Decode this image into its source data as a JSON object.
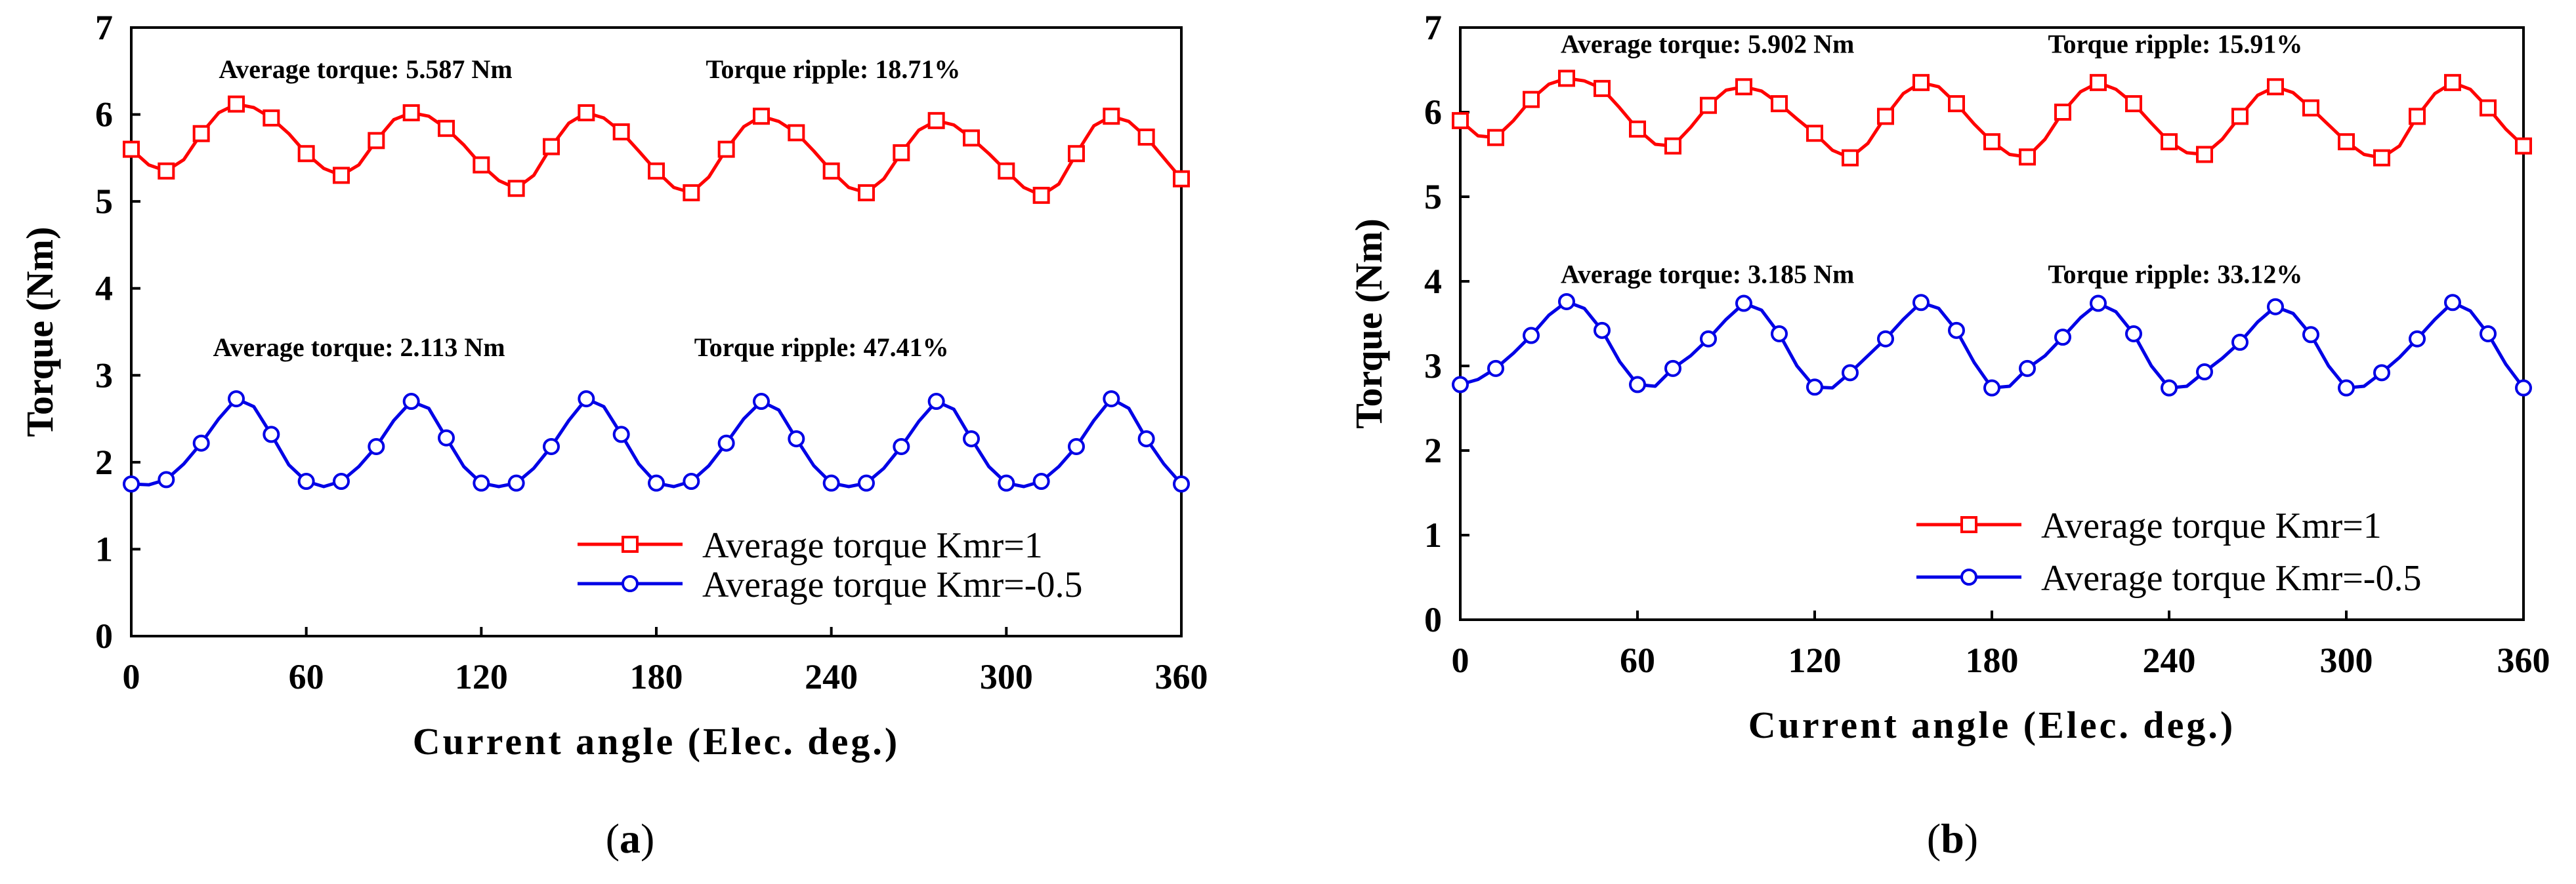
{
  "colors": {
    "red": "#ff0000",
    "blue": "#0000e6",
    "axis": "#000000"
  },
  "chart_data": [
    {
      "type": "line",
      "caption_open": "(",
      "caption_letter": "a",
      "caption_close": ")",
      "xlabel": "Current angle (Elec. deg.)",
      "ylabel": "Torque (Nm)",
      "xlim": [
        0,
        360
      ],
      "ylim": [
        0,
        7
      ],
      "xticks": [
        0,
        60,
        120,
        180,
        240,
        300,
        360
      ],
      "yticks": [
        0,
        1,
        2,
        3,
        4,
        5,
        6,
        7
      ],
      "annotations": [
        {
          "text": "Average torque: 5.587 Nm",
          "x": 30,
          "y": 6.42
        },
        {
          "text": "Torque ripple: 18.71%",
          "x": 197,
          "y": 6.42
        },
        {
          "text": "Average torque: 2.113 Nm",
          "x": 28,
          "y": 3.22
        },
        {
          "text": "Torque ripple: 47.41%",
          "x": 193,
          "y": 3.22
        }
      ],
      "legend": [
        "Average torque Kmr=1",
        "Average torque Kmr=-0.5"
      ],
      "series": [
        {
          "name": "Average torque Kmr=1",
          "color": "red",
          "marker": "square",
          "x": [
            0,
            6,
            12,
            18,
            24,
            30,
            36,
            42,
            48,
            54,
            60,
            66,
            72,
            78,
            84,
            90,
            96,
            102,
            108,
            114,
            120,
            126,
            132,
            138,
            144,
            150,
            156,
            162,
            168,
            174,
            180,
            186,
            192,
            198,
            204,
            210,
            216,
            222,
            228,
            234,
            240,
            246,
            252,
            258,
            264,
            270,
            276,
            282,
            288,
            294,
            300,
            306,
            312,
            318,
            324,
            330,
            336,
            342,
            348,
            354,
            360
          ],
          "y": [
            5.6,
            5.42,
            5.35,
            5.48,
            5.78,
            6.02,
            6.12,
            6.08,
            5.96,
            5.78,
            5.55,
            5.38,
            5.3,
            5.42,
            5.7,
            5.94,
            6.02,
            5.98,
            5.84,
            5.65,
            5.42,
            5.24,
            5.15,
            5.3,
            5.63,
            5.9,
            6.02,
            5.96,
            5.8,
            5.58,
            5.35,
            5.16,
            5.1,
            5.28,
            5.6,
            5.86,
            5.98,
            5.92,
            5.79,
            5.58,
            5.35,
            5.16,
            5.1,
            5.26,
            5.56,
            5.82,
            5.93,
            5.88,
            5.73,
            5.55,
            5.35,
            5.16,
            5.07,
            5.2,
            5.55,
            5.87,
            5.98,
            5.92,
            5.74,
            5.5,
            5.26
          ],
          "markers": [
            [
              0,
              5.6
            ],
            [
              12,
              5.35
            ],
            [
              24,
              5.78
            ],
            [
              36,
              6.12
            ],
            [
              48,
              5.96
            ],
            [
              60,
              5.55
            ],
            [
              72,
              5.3
            ],
            [
              84,
              5.7
            ],
            [
              96,
              6.02
            ],
            [
              108,
              5.84
            ],
            [
              120,
              5.42
            ],
            [
              132,
              5.15
            ],
            [
              144,
              5.63
            ],
            [
              156,
              6.02
            ],
            [
              168,
              5.8
            ],
            [
              180,
              5.35
            ],
            [
              192,
              5.1
            ],
            [
              204,
              5.6
            ],
            [
              216,
              5.98
            ],
            [
              228,
              5.79
            ],
            [
              240,
              5.35
            ],
            [
              252,
              5.1
            ],
            [
              264,
              5.56
            ],
            [
              276,
              5.93
            ],
            [
              288,
              5.73
            ],
            [
              300,
              5.35
            ],
            [
              312,
              5.07
            ],
            [
              324,
              5.55
            ],
            [
              336,
              5.98
            ],
            [
              348,
              5.74
            ],
            [
              360,
              5.26
            ]
          ]
        },
        {
          "name": "Average torque Kmr=-0.5",
          "color": "blue",
          "marker": "circle",
          "x": [
            0,
            6,
            12,
            18,
            24,
            30,
            36,
            42,
            48,
            54,
            60,
            66,
            72,
            78,
            84,
            90,
            96,
            102,
            108,
            114,
            120,
            126,
            132,
            138,
            144,
            150,
            156,
            162,
            168,
            174,
            180,
            186,
            192,
            198,
            204,
            210,
            216,
            222,
            228,
            234,
            240,
            246,
            252,
            258,
            264,
            270,
            276,
            282,
            288,
            294,
            300,
            306,
            312,
            318,
            324,
            330,
            336,
            342,
            348,
            354,
            360
          ],
          "y": [
            1.75,
            1.74,
            1.8,
            1.98,
            2.22,
            2.5,
            2.73,
            2.64,
            2.32,
            1.97,
            1.78,
            1.72,
            1.78,
            1.95,
            2.18,
            2.48,
            2.7,
            2.62,
            2.28,
            1.95,
            1.76,
            1.72,
            1.76,
            1.93,
            2.18,
            2.48,
            2.73,
            2.64,
            2.32,
            1.98,
            1.76,
            1.72,
            1.78,
            1.96,
            2.22,
            2.5,
            2.7,
            2.6,
            2.27,
            1.96,
            1.76,
            1.72,
            1.76,
            1.93,
            2.18,
            2.47,
            2.7,
            2.61,
            2.27,
            1.95,
            1.76,
            1.72,
            1.78,
            1.95,
            2.18,
            2.48,
            2.73,
            2.62,
            2.27,
            1.98,
            1.75
          ],
          "markers": [
            [
              0,
              1.75
            ],
            [
              12,
              1.8
            ],
            [
              24,
              2.22
            ],
            [
              36,
              2.73
            ],
            [
              48,
              2.32
            ],
            [
              60,
              1.78
            ],
            [
              72,
              1.78
            ],
            [
              84,
              2.18
            ],
            [
              96,
              2.7
            ],
            [
              108,
              2.28
            ],
            [
              120,
              1.76
            ],
            [
              132,
              1.76
            ],
            [
              144,
              2.18
            ],
            [
              156,
              2.73
            ],
            [
              168,
              2.32
            ],
            [
              180,
              1.76
            ],
            [
              192,
              1.78
            ],
            [
              204,
              2.22
            ],
            [
              216,
              2.7
            ],
            [
              228,
              2.27
            ],
            [
              240,
              1.76
            ],
            [
              252,
              1.76
            ],
            [
              264,
              2.18
            ],
            [
              276,
              2.7
            ],
            [
              288,
              2.27
            ],
            [
              300,
              1.76
            ],
            [
              312,
              1.78
            ],
            [
              324,
              2.18
            ],
            [
              336,
              2.73
            ],
            [
              348,
              2.27
            ],
            [
              360,
              1.75
            ]
          ]
        }
      ]
    },
    {
      "type": "line",
      "caption_open": "(",
      "caption_letter": "b",
      "caption_close": ")",
      "xlabel": "Current angle (Elec. deg.)",
      "ylabel": "Torque (Nm)",
      "xlim": [
        0,
        360
      ],
      "ylim": [
        0,
        7
      ],
      "xticks": [
        0,
        60,
        120,
        180,
        240,
        300,
        360
      ],
      "yticks": [
        0,
        1,
        2,
        3,
        4,
        5,
        6,
        7
      ],
      "annotations": [
        {
          "text": "Average torque: 5.902 Nm",
          "x": 34,
          "y": 6.7
        },
        {
          "text": "Torque ripple: 15.91%",
          "x": 199,
          "y": 6.7
        },
        {
          "text": "Average torque: 3.185 Nm",
          "x": 34,
          "y": 3.98
        },
        {
          "text": "Torque ripple: 33.12%",
          "x": 199,
          "y": 3.98
        }
      ],
      "legend": [
        "Average torque Kmr=1",
        "Average torque Kmr=-0.5"
      ],
      "series": [
        {
          "name": "Average torque Kmr=1",
          "color": "red",
          "marker": "square",
          "x": [
            0,
            6,
            12,
            18,
            24,
            30,
            36,
            42,
            48,
            54,
            60,
            66,
            72,
            78,
            84,
            90,
            96,
            102,
            108,
            114,
            120,
            126,
            132,
            138,
            144,
            150,
            156,
            162,
            168,
            174,
            180,
            186,
            192,
            198,
            204,
            210,
            216,
            222,
            228,
            234,
            240,
            246,
            252,
            258,
            264,
            270,
            276,
            282,
            288,
            294,
            300,
            306,
            312,
            318,
            324,
            330,
            336,
            342,
            348,
            354,
            360
          ],
          "y": [
            5.9,
            5.72,
            5.7,
            5.9,
            6.15,
            6.33,
            6.4,
            6.37,
            6.28,
            6.05,
            5.8,
            5.62,
            5.6,
            5.82,
            6.08,
            6.26,
            6.3,
            6.25,
            6.1,
            5.92,
            5.75,
            5.55,
            5.46,
            5.63,
            5.95,
            6.22,
            6.35,
            6.3,
            6.1,
            5.86,
            5.65,
            5.5,
            5.47,
            5.68,
            6.0,
            6.24,
            6.35,
            6.27,
            6.1,
            5.87,
            5.65,
            5.52,
            5.5,
            5.68,
            5.95,
            6.2,
            6.3,
            6.23,
            6.05,
            5.85,
            5.65,
            5.5,
            5.46,
            5.6,
            5.95,
            6.22,
            6.35,
            6.27,
            6.05,
            5.8,
            5.6
          ],
          "markers": [
            [
              0,
              5.9
            ],
            [
              12,
              5.7
            ],
            [
              24,
              6.15
            ],
            [
              36,
              6.4
            ],
            [
              48,
              6.28
            ],
            [
              60,
              5.8
            ],
            [
              72,
              5.6
            ],
            [
              84,
              6.08
            ],
            [
              96,
              6.3
            ],
            [
              108,
              6.1
            ],
            [
              120,
              5.75
            ],
            [
              132,
              5.46
            ],
            [
              144,
              5.95
            ],
            [
              156,
              6.35
            ],
            [
              168,
              6.1
            ],
            [
              180,
              5.65
            ],
            [
              192,
              5.47
            ],
            [
              204,
              6.0
            ],
            [
              216,
              6.35
            ],
            [
              228,
              6.1
            ],
            [
              240,
              5.65
            ],
            [
              252,
              5.5
            ],
            [
              264,
              5.95
            ],
            [
              276,
              6.3
            ],
            [
              288,
              6.05
            ],
            [
              300,
              5.65
            ],
            [
              312,
              5.46
            ],
            [
              324,
              5.95
            ],
            [
              336,
              6.35
            ],
            [
              348,
              6.05
            ],
            [
              360,
              5.6
            ]
          ]
        },
        {
          "name": "Average torque Kmr=-0.5",
          "color": "blue",
          "marker": "circle",
          "x": [
            0,
            6,
            12,
            18,
            24,
            30,
            36,
            42,
            48,
            54,
            60,
            66,
            72,
            78,
            84,
            90,
            96,
            102,
            108,
            114,
            120,
            126,
            132,
            138,
            144,
            150,
            156,
            162,
            168,
            174,
            180,
            186,
            192,
            198,
            204,
            210,
            216,
            222,
            228,
            234,
            240,
            246,
            252,
            258,
            264,
            270,
            276,
            282,
            288,
            294,
            300,
            306,
            312,
            318,
            324,
            330,
            336,
            342,
            348,
            354,
            360
          ],
          "y": [
            2.78,
            2.84,
            2.97,
            3.15,
            3.36,
            3.6,
            3.76,
            3.68,
            3.42,
            3.05,
            2.78,
            2.76,
            2.97,
            3.12,
            3.32,
            3.55,
            3.74,
            3.66,
            3.38,
            3.0,
            2.75,
            2.74,
            2.92,
            3.12,
            3.32,
            3.55,
            3.75,
            3.68,
            3.42,
            3.04,
            2.74,
            2.76,
            2.97,
            3.12,
            3.34,
            3.57,
            3.74,
            3.64,
            3.38,
            3.0,
            2.74,
            2.76,
            2.93,
            3.09,
            3.28,
            3.52,
            3.7,
            3.62,
            3.37,
            3.0,
            2.74,
            2.76,
            2.92,
            3.1,
            3.32,
            3.55,
            3.75,
            3.65,
            3.38,
            3.02,
            2.74
          ],
          "markers": [
            [
              0,
              2.78
            ],
            [
              12,
              2.97
            ],
            [
              24,
              3.36
            ],
            [
              36,
              3.76
            ],
            [
              48,
              3.42
            ],
            [
              60,
              2.78
            ],
            [
              72,
              2.97
            ],
            [
              84,
              3.32
            ],
            [
              96,
              3.74
            ],
            [
              108,
              3.38
            ],
            [
              120,
              2.75
            ],
            [
              132,
              2.92
            ],
            [
              144,
              3.32
            ],
            [
              156,
              3.75
            ],
            [
              168,
              3.42
            ],
            [
              180,
              2.74
            ],
            [
              192,
              2.97
            ],
            [
              204,
              3.34
            ],
            [
              216,
              3.74
            ],
            [
              228,
              3.38
            ],
            [
              240,
              2.74
            ],
            [
              252,
              2.93
            ],
            [
              264,
              3.28
            ],
            [
              276,
              3.7
            ],
            [
              288,
              3.37
            ],
            [
              300,
              2.74
            ],
            [
              312,
              2.92
            ],
            [
              324,
              3.32
            ],
            [
              336,
              3.75
            ],
            [
              348,
              3.38
            ],
            [
              360,
              2.74
            ]
          ]
        }
      ]
    }
  ]
}
